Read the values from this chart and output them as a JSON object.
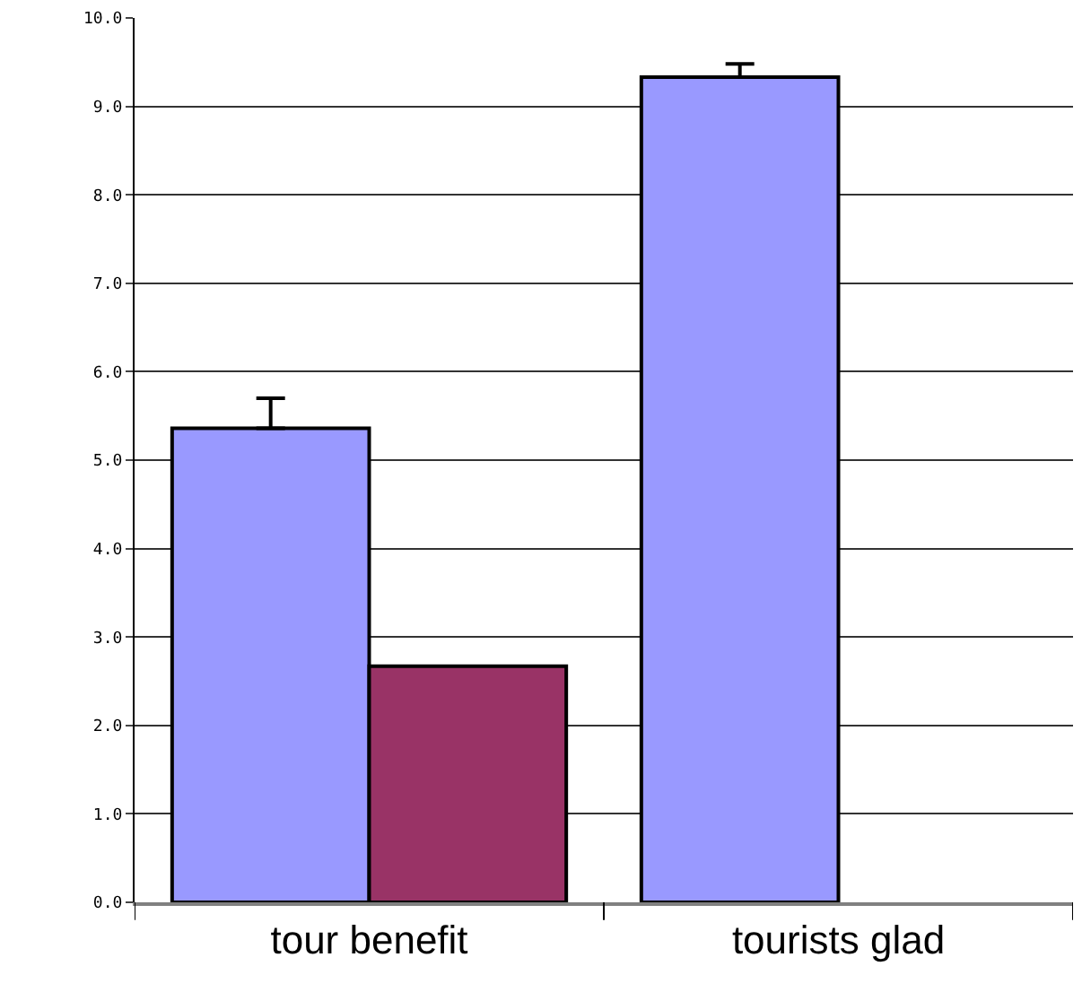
{
  "chart_data": {
    "type": "bar",
    "categories": [
      "tour benefit",
      "tourists glad"
    ],
    "series": [
      {
        "color": "#9999ff",
        "values": [
          5.36,
          9.33
        ],
        "errors": [
          [
            5.36,
            5.7
          ],
          [
            9.33,
            9.48
          ]
        ]
      },
      {
        "color": "#993366",
        "values": [
          2.67,
          null
        ]
      }
    ],
    "ylim": [
      0,
      10
    ],
    "yticks": [
      {
        "value": 0,
        "label": "0.0"
      },
      {
        "value": 1,
        "label": "1.0"
      },
      {
        "value": 2,
        "label": "2.0"
      },
      {
        "value": 3,
        "label": "3.0"
      },
      {
        "value": 4,
        "label": "4.0"
      },
      {
        "value": 5,
        "label": "5.0"
      },
      {
        "value": 6,
        "label": "6.0"
      },
      {
        "value": 7,
        "label": "7.0"
      },
      {
        "value": 8,
        "label": "8.0"
      },
      {
        "value": 9,
        "label": "9.0"
      },
      {
        "value": 10,
        "label": "10.0"
      }
    ],
    "grid": "y"
  }
}
